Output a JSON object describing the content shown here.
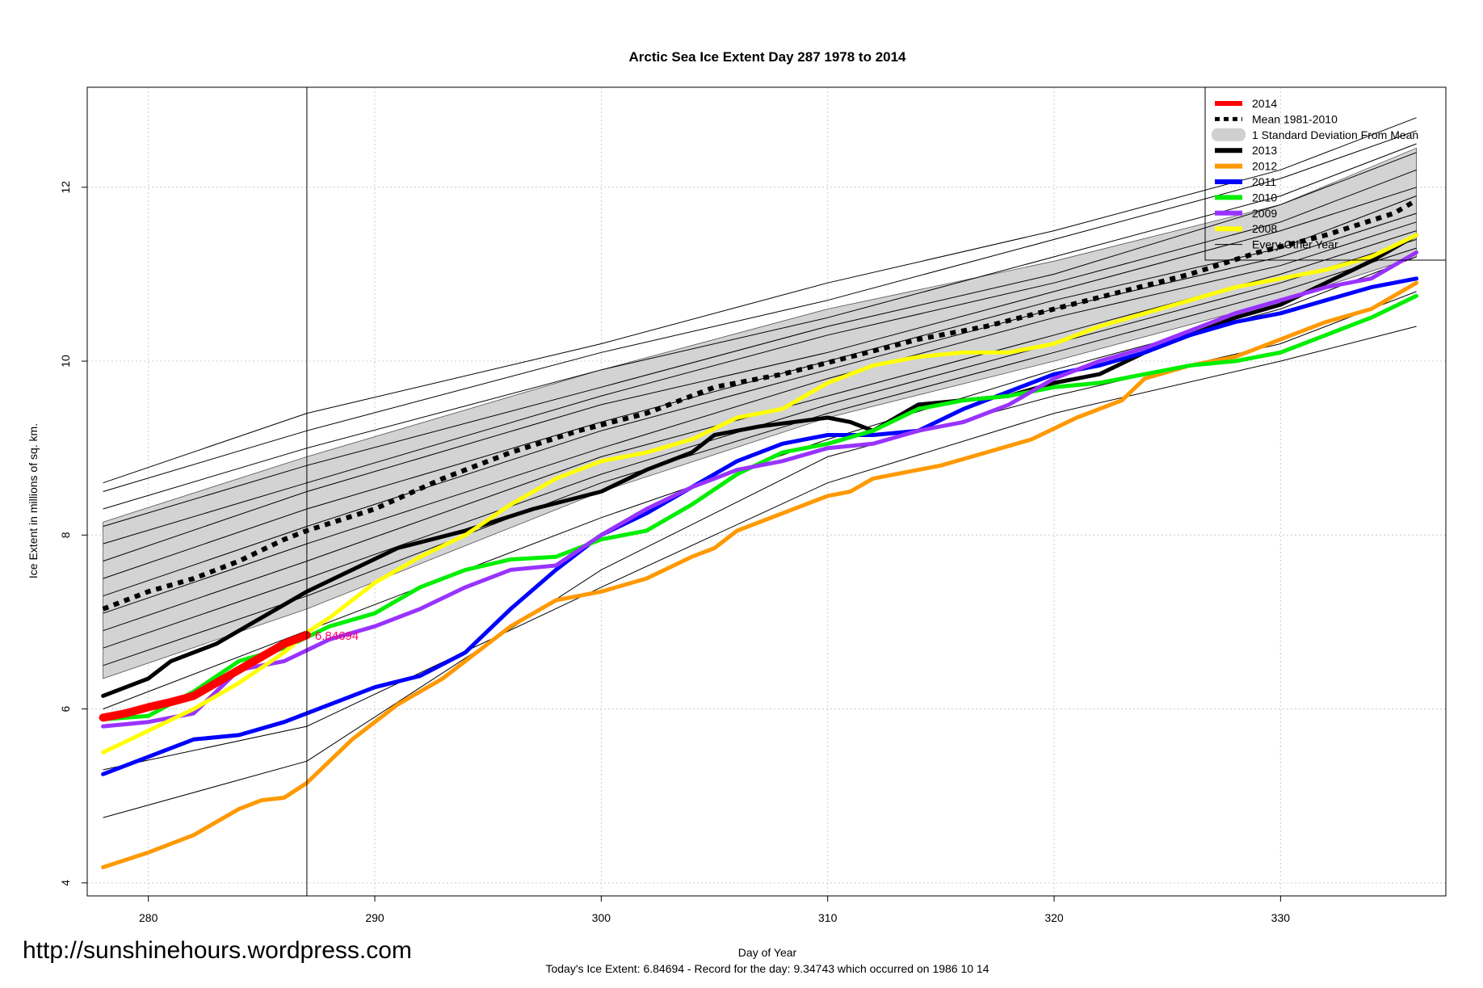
{
  "chart_data": {
    "type": "line",
    "title": "Arctic Sea Ice Extent Day 287 1978 to 2014",
    "xlabel": "Day of Year",
    "ylabel": "Ice Extent in millions of sq. km.",
    "xlim": [
      277.3,
      337.3
    ],
    "ylim": [
      3.85,
      13.15
    ],
    "xticks": [
      280,
      290,
      300,
      310,
      320,
      330
    ],
    "yticks": [
      4,
      6,
      8,
      10,
      12
    ],
    "current_day": 287,
    "current_value_label": "6.84694",
    "footer": "Today's Ice Extent: 6.84694  - Record for the day: 9.34743 which occurred on 1986 10 14",
    "std_band": {
      "x": [
        278,
        287,
        300,
        310,
        320,
        330,
        336
      ],
      "lower": [
        6.35,
        7.15,
        8.5,
        9.35,
        10.0,
        10.7,
        11.2
      ],
      "upper": [
        8.15,
        8.9,
        9.9,
        10.6,
        11.15,
        11.8,
        12.45
      ]
    },
    "other_years_color": "#000000",
    "other_years": [
      {
        "x": [
          278,
          287,
          300,
          310,
          320,
          330,
          336
        ],
        "y": [
          8.6,
          9.4,
          10.2,
          10.9,
          11.5,
          12.2,
          12.8
        ]
      },
      {
        "x": [
          278,
          287,
          300,
          310,
          320,
          330,
          336
        ],
        "y": [
          8.5,
          9.2,
          10.1,
          10.7,
          11.4,
          12.1,
          12.65
        ]
      },
      {
        "x": [
          278,
          287,
          300,
          310,
          320,
          330,
          336
        ],
        "y": [
          8.3,
          9.0,
          9.9,
          10.5,
          11.2,
          11.9,
          12.5
        ]
      },
      {
        "x": [
          278,
          287,
          300,
          310,
          320,
          330,
          336
        ],
        "y": [
          8.1,
          8.8,
          9.7,
          10.4,
          11.0,
          11.8,
          12.4
        ]
      },
      {
        "x": [
          278,
          287,
          300,
          310,
          320,
          330,
          336
        ],
        "y": [
          7.9,
          8.6,
          9.6,
          10.3,
          10.9,
          11.6,
          12.2
        ]
      },
      {
        "x": [
          278,
          287,
          300,
          310,
          320,
          330,
          336
        ],
        "y": [
          7.7,
          8.5,
          9.5,
          10.1,
          10.8,
          11.5,
          12.0
        ]
      },
      {
        "x": [
          278,
          287,
          300,
          310,
          320,
          330,
          336
        ],
        "y": [
          7.5,
          8.3,
          9.3,
          10.0,
          10.7,
          11.3,
          11.9
        ]
      },
      {
        "x": [
          278,
          287,
          300,
          310,
          320,
          330,
          336
        ],
        "y": [
          7.3,
          8.1,
          9.2,
          9.9,
          10.6,
          11.2,
          11.7
        ]
      },
      {
        "x": [
          278,
          287,
          300,
          310,
          320,
          330,
          336
        ],
        "y": [
          7.1,
          7.9,
          9.0,
          9.8,
          10.5,
          11.1,
          11.6
        ]
      },
      {
        "x": [
          278,
          287,
          300,
          310,
          320,
          330,
          336
        ],
        "y": [
          6.9,
          7.7,
          8.9,
          9.6,
          10.3,
          11.0,
          11.5
        ]
      },
      {
        "x": [
          278,
          287,
          300,
          310,
          320,
          330,
          336
        ],
        "y": [
          6.7,
          7.5,
          8.7,
          9.5,
          10.2,
          10.9,
          11.4
        ]
      },
      {
        "x": [
          278,
          287,
          300,
          310,
          320,
          330,
          336
        ],
        "y": [
          6.5,
          7.3,
          8.6,
          9.4,
          10.1,
          10.8,
          11.3
        ]
      },
      {
        "x": [
          278,
          287,
          300,
          310,
          320,
          330,
          336
        ],
        "y": [
          6.0,
          6.9,
          8.2,
          9.1,
          9.9,
          10.6,
          11.2
        ]
      },
      {
        "x": [
          278,
          287,
          300,
          310,
          320,
          330,
          336
        ],
        "y": [
          5.3,
          5.8,
          7.4,
          8.6,
          9.4,
          10.0,
          10.4
        ]
      },
      {
        "x": [
          278,
          287,
          300,
          310,
          320,
          330,
          336
        ],
        "y": [
          4.75,
          5.4,
          7.6,
          8.9,
          9.6,
          10.2,
          10.8
        ]
      }
    ],
    "series": [
      {
        "name": "Mean 1981-2010",
        "color": "#000000",
        "style": "dotted",
        "x": [
          278,
          280,
          282,
          284,
          286,
          287,
          290,
          293,
          296,
          299,
          302,
          305,
          308,
          311,
          314,
          317,
          320,
          323,
          326,
          329,
          332,
          335,
          336
        ],
        "y": [
          7.15,
          7.35,
          7.5,
          7.7,
          7.95,
          8.05,
          8.3,
          8.65,
          8.95,
          9.2,
          9.4,
          9.7,
          9.85,
          10.05,
          10.25,
          10.4,
          10.6,
          10.8,
          11.0,
          11.25,
          11.45,
          11.7,
          11.85
        ]
      },
      {
        "name": "2013",
        "color": "#000000",
        "style": "solid",
        "x": [
          278,
          280,
          281,
          283,
          285,
          287,
          289,
          291,
          294,
          297,
          300,
          302,
          304,
          305,
          307,
          310,
          311,
          312,
          314,
          316,
          318,
          320,
          322,
          324,
          326,
          328,
          330,
          332,
          334,
          336
        ],
        "y": [
          6.15,
          6.35,
          6.55,
          6.75,
          7.05,
          7.35,
          7.6,
          7.85,
          8.05,
          8.3,
          8.5,
          8.75,
          8.95,
          9.15,
          9.25,
          9.35,
          9.3,
          9.2,
          9.5,
          9.55,
          9.6,
          9.75,
          9.85,
          10.1,
          10.3,
          10.5,
          10.65,
          10.9,
          11.15,
          11.45
        ]
      },
      {
        "name": "2012",
        "color": "#ff9900",
        "style": "solid",
        "x": [
          278,
          280,
          282,
          284,
          285,
          286,
          287,
          289,
          291,
          293,
          296,
          298,
          299,
          300,
          302,
          304,
          305,
          306,
          308,
          310,
          311,
          312,
          314,
          315,
          317,
          319,
          321,
          323,
          324,
          326,
          328,
          330,
          332,
          334,
          336
        ],
        "y": [
          4.18,
          4.35,
          4.55,
          4.85,
          4.95,
          4.98,
          5.15,
          5.65,
          6.05,
          6.35,
          6.95,
          7.25,
          7.3,
          7.35,
          7.5,
          7.75,
          7.85,
          8.05,
          8.25,
          8.45,
          8.5,
          8.65,
          8.75,
          8.8,
          8.95,
          9.1,
          9.35,
          9.55,
          9.8,
          9.95,
          10.05,
          10.25,
          10.45,
          10.6,
          10.9
        ]
      },
      {
        "name": "2011",
        "color": "#0000ff",
        "style": "solid",
        "x": [
          278,
          280,
          282,
          284,
          286,
          288,
          290,
          292,
          294,
          296,
          298,
          300,
          302,
          304,
          306,
          308,
          310,
          312,
          314,
          316,
          318,
          320,
          322,
          324,
          326,
          328,
          330,
          332,
          334,
          336
        ],
        "y": [
          5.25,
          5.45,
          5.65,
          5.7,
          5.85,
          6.05,
          6.25,
          6.38,
          6.65,
          7.15,
          7.6,
          8.0,
          8.25,
          8.55,
          8.85,
          9.05,
          9.15,
          9.15,
          9.2,
          9.45,
          9.65,
          9.85,
          9.95,
          10.1,
          10.3,
          10.45,
          10.55,
          10.7,
          10.85,
          10.95
        ]
      },
      {
        "name": "2010",
        "color": "#00ee00",
        "style": "solid",
        "x": [
          278,
          280,
          282,
          284,
          286,
          288,
          290,
          292,
          294,
          296,
          298,
          300,
          302,
          304,
          306,
          308,
          310,
          312,
          314,
          316,
          318,
          320,
          322,
          324,
          326,
          328,
          330,
          332,
          334,
          336
        ],
        "y": [
          5.88,
          5.92,
          6.2,
          6.55,
          6.7,
          6.95,
          7.1,
          7.4,
          7.6,
          7.72,
          7.75,
          7.95,
          8.05,
          8.35,
          8.7,
          8.95,
          9.05,
          9.2,
          9.45,
          9.55,
          9.6,
          9.7,
          9.75,
          9.85,
          9.95,
          10.0,
          10.1,
          10.3,
          10.5,
          10.75
        ]
      },
      {
        "name": "2009",
        "color": "#9933ff",
        "style": "solid",
        "x": [
          278,
          280,
          282,
          284,
          286,
          288,
          290,
          292,
          294,
          296,
          298,
          300,
          302,
          304,
          306,
          308,
          310,
          312,
          314,
          316,
          318,
          320,
          322,
          324,
          326,
          328,
          330,
          332,
          334,
          336
        ],
        "y": [
          5.8,
          5.85,
          5.95,
          6.45,
          6.55,
          6.8,
          6.95,
          7.15,
          7.4,
          7.6,
          7.65,
          8.0,
          8.3,
          8.55,
          8.75,
          8.85,
          9.0,
          9.05,
          9.2,
          9.3,
          9.5,
          9.8,
          10.0,
          10.15,
          10.35,
          10.55,
          10.7,
          10.85,
          10.95,
          11.25
        ]
      },
      {
        "name": "2008",
        "color": "#ffff00",
        "style": "solid",
        "x": [
          278,
          280,
          282,
          284,
          286,
          287,
          288,
          290,
          292,
          294,
          296,
          298,
          300,
          302,
          304,
          306,
          308,
          310,
          312,
          314,
          316,
          318,
          320,
          322,
          324,
          326,
          328,
          330,
          332,
          334,
          336
        ],
        "y": [
          5.5,
          5.75,
          6.0,
          6.3,
          6.65,
          6.88,
          7.05,
          7.45,
          7.75,
          8.0,
          8.35,
          8.65,
          8.85,
          8.95,
          9.1,
          9.35,
          9.45,
          9.75,
          9.95,
          10.05,
          10.1,
          10.1,
          10.2,
          10.4,
          10.55,
          10.7,
          10.85,
          10.95,
          11.05,
          11.2,
          11.45
        ]
      },
      {
        "name": "2014",
        "color": "#ff0000",
        "style": "solid",
        "x": [
          278,
          279,
          280,
          281,
          282,
          283,
          284,
          285,
          286,
          287
        ],
        "y": [
          5.9,
          5.95,
          6.02,
          6.08,
          6.15,
          6.3,
          6.45,
          6.6,
          6.75,
          6.85
        ]
      }
    ],
    "legend": {
      "placement": "top-right",
      "entries": [
        {
          "label": "2014",
          "color": "#ff0000",
          "kind": "thick"
        },
        {
          "label": "Mean 1981-2010",
          "color": "#000000",
          "kind": "dotted"
        },
        {
          "label": "1 Standard Deviation From Mean",
          "color": "#d0d0d0",
          "kind": "band"
        },
        {
          "label": "2013",
          "color": "#000000",
          "kind": "thick"
        },
        {
          "label": "2012",
          "color": "#ff9900",
          "kind": "thick"
        },
        {
          "label": "2011",
          "color": "#0000ff",
          "kind": "thick"
        },
        {
          "label": "2010",
          "color": "#00ee00",
          "kind": "thick"
        },
        {
          "label": "2009",
          "color": "#9933ff",
          "kind": "thick"
        },
        {
          "label": "2008",
          "color": "#ffff00",
          "kind": "thick"
        },
        {
          "label": "Every Other Year",
          "color": "#000000",
          "kind": "thin"
        }
      ]
    }
  },
  "watermark_url": "http://sunshinehours.wordpress.com"
}
